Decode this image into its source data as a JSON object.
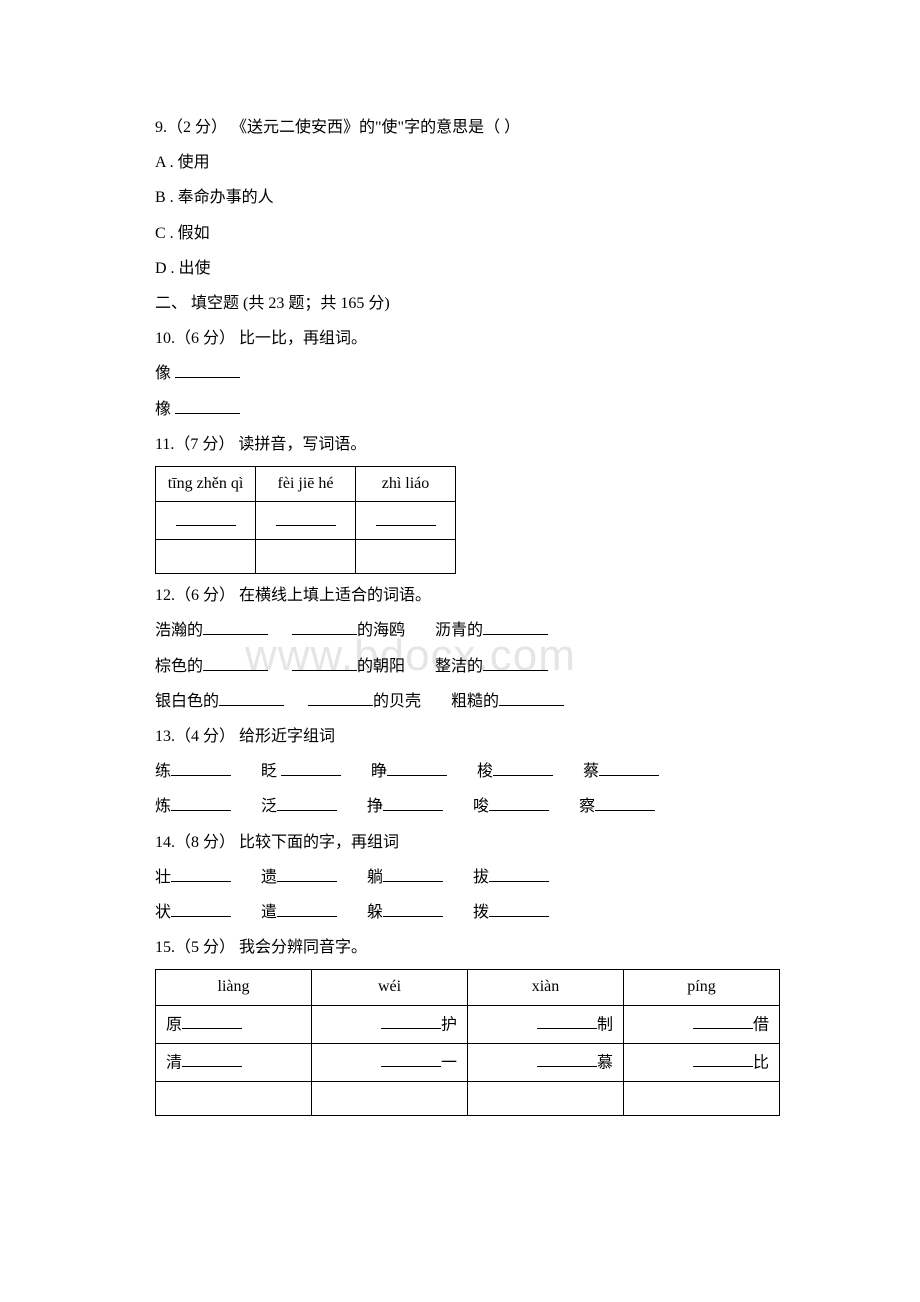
{
  "q9": {
    "stem": "9.（2 分） 《送元二使安西》的\"使\"字的意思是（ ）",
    "a": "A . 使用",
    "b": "B . 奉命办事的人",
    "c": "C . 假如",
    "d": "D . 出使"
  },
  "section2": "二、 填空题 (共 23 题；共 165 分)",
  "q10": {
    "stem": "10.（6 分） 比一比，再组词。",
    "row1_pre": "像 ",
    "row2_pre": "橡 "
  },
  "q11": {
    "stem": "11.（7 分） 读拼音，写词语。",
    "h1": "tīng zhěn qì",
    "h2": "fèi jiē hé",
    "h3": "zhì liáo"
  },
  "q12": {
    "stem": "12.（6 分） 在横线上填上适合的词语。",
    "r1a": "浩瀚的",
    "r1b": "的海鸥",
    "r1c": "沥青的",
    "r2a": "棕色的",
    "r2b": "的朝阳",
    "r2c": "整洁的",
    "r3a": "银白色的",
    "r3b": "的贝壳",
    "r3c": "粗糙的"
  },
  "q13": {
    "stem": "13.（4 分） 给形近字组词",
    "r1": [
      "练",
      "眨",
      "睁",
      "梭",
      "蔡"
    ],
    "r2": [
      "炼",
      "泛",
      "挣",
      "唆",
      "察"
    ]
  },
  "q14": {
    "stem": "14.（8 分） 比较下面的字，再组词",
    "r1": [
      "壮",
      "遗",
      "躺",
      "拔"
    ],
    "r2": [
      "状",
      "遣",
      "躲",
      "拨"
    ]
  },
  "q15": {
    "stem": "15.（5 分） 我会分辨同音字。",
    "h": [
      "liàng",
      "wéi",
      "xiàn",
      "píng"
    ],
    "r1": {
      "c1_pre": "原",
      "c2_suf": "护",
      "c3_suf": "制",
      "c4_suf": "借"
    },
    "r2": {
      "c1_pre": "清",
      "c2_suf": "一",
      "c3_suf": "慕",
      "c4_suf": "比"
    }
  },
  "watermark": "www.bdocx.com"
}
